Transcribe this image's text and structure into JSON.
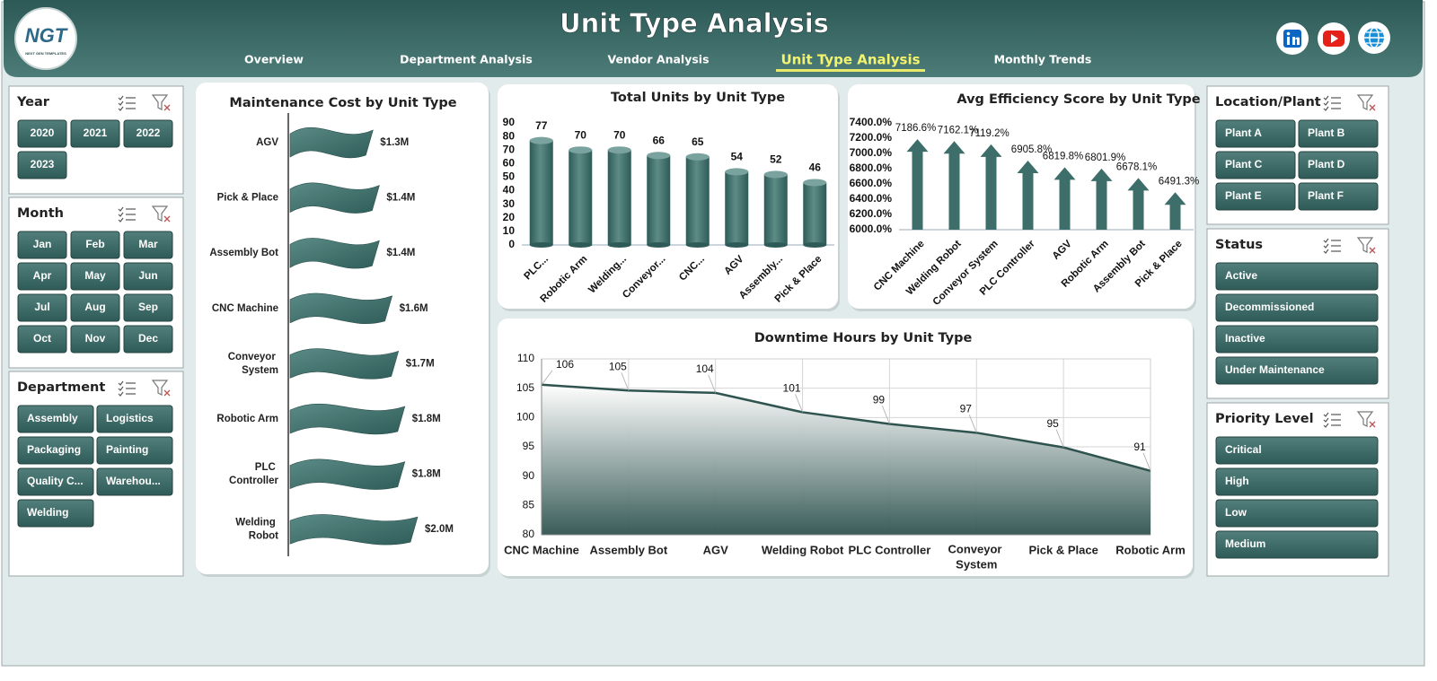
{
  "header": {
    "logo": "NGT",
    "logo_tagline": "NEXT GEN TEMPLATES",
    "title": "Unit Type Analysis"
  },
  "nav": {
    "tabs": [
      "Overview",
      "Department Analysis",
      "Vendor Analysis",
      "Unit Type Analysis",
      "Monthly Trends"
    ],
    "active": 3
  },
  "slicers": [
    {
      "title": "Year",
      "items": [
        "2020",
        "2021",
        "2022",
        "2023"
      ]
    },
    {
      "title": "Month",
      "items": [
        "Jan",
        "Feb",
        "Mar",
        "Apr",
        "May",
        "Jun",
        "Jul",
        "Aug",
        "Sep",
        "Oct",
        "Nov",
        "Dec"
      ]
    },
    {
      "title": "Department",
      "items": [
        "Assembly",
        "Logistics",
        "Packaging",
        "Painting",
        "Quality C...",
        "Warehou...",
        "Welding"
      ]
    },
    {
      "title": "Location/Plant",
      "items": [
        "Plant A",
        "Plant B",
        "Plant C",
        "Plant D",
        "Plant E",
        "Plant F"
      ]
    },
    {
      "title": "Status",
      "items": [
        "Active",
        "Decommissioned",
        "Inactive",
        "Under Maintenance"
      ]
    },
    {
      "title": "Priority Level",
      "items": [
        "Critical",
        "High",
        "Low",
        "Medium"
      ]
    }
  ],
  "chart_data": [
    {
      "type": "bar",
      "orientation": "horizontal",
      "mark_shape": "flag",
      "title": "Maintenance Cost by Unit Type",
      "categories": [
        "AGV",
        "Pick & Place",
        "Assembly Bot",
        "CNC Machine",
        "Conveyor System",
        "Robotic Arm",
        "PLC Controller",
        "Welding Robot"
      ],
      "values": [
        1.3,
        1.4,
        1.4,
        1.6,
        1.7,
        1.8,
        1.8,
        2.0
      ],
      "value_labels": [
        "$1.3M",
        "$1.4M",
        "$1.4M",
        "$1.6M",
        "$1.7M",
        "$1.8M",
        "$1.8M",
        "$2.0M"
      ],
      "color": "#3d6e6a"
    },
    {
      "type": "bar",
      "orientation": "vertical",
      "mark_shape": "cylinder",
      "title": "Total Units by Unit Type",
      "categories": [
        "PLC...",
        "Robotic Arm",
        "Welding...",
        "Conveyor...",
        "CNC...",
        "AGV",
        "Assembly...",
        "Pick & Place"
      ],
      "values": [
        77,
        70,
        70,
        66,
        65,
        54,
        52,
        46
      ],
      "color": "#3d6e6a",
      "ylim": [
        0,
        90
      ],
      "yticks": [
        0,
        10,
        20,
        30,
        40,
        50,
        60,
        70,
        80,
        90
      ],
      "grid": false
    },
    {
      "type": "bar",
      "orientation": "vertical",
      "mark_shape": "arrow",
      "title": "Avg Efficiency Score by Unit Type",
      "categories": [
        "CNC Machine",
        "Welding Robot",
        "Conveyor System",
        "PLC Controller",
        "AGV",
        "Robotic Arm",
        "Assembly Bot",
        "Pick & Place"
      ],
      "values": [
        7186.6,
        7162.1,
        7119.2,
        6905.8,
        6819.8,
        6801.9,
        6678.1,
        6491.3
      ],
      "value_labels": [
        "7186.6%",
        "7162.1%",
        "7119.2%",
        "6905.8%",
        "6819.8%",
        "6801.9%",
        "6678.1%",
        "6491.3%"
      ],
      "color": "#3d6e6a",
      "ylim": [
        6000,
        7400
      ],
      "yticks": [
        {
          "value": 6000,
          "label": "6000.0%"
        },
        {
          "value": 6200,
          "label": "6200.0%"
        },
        {
          "value": 6400,
          "label": "6400.0%"
        },
        {
          "value": 6600,
          "label": "6600.0%"
        },
        {
          "value": 6800,
          "label": "6800.0%"
        },
        {
          "value": 7000,
          "label": "7000.0%"
        },
        {
          "value": 7200,
          "label": "7200.0%"
        },
        {
          "value": 7400,
          "label": "7400.0%"
        }
      ],
      "grid": false
    },
    {
      "type": "area",
      "title": "Downtime Hours by Unit Type",
      "categories": [
        "CNC Machine",
        "Assembly Bot",
        "AGV",
        "Welding Robot",
        "PLC Controller",
        "Conveyor System",
        "Pick & Place",
        "Robotic Arm"
      ],
      "values": [
        105.6,
        104.6,
        104.2,
        100.9,
        98.9,
        97.4,
        94.9,
        90.9
      ],
      "value_labels": [
        "106",
        "105",
        "104",
        "101",
        "99",
        "97",
        "95",
        "91"
      ],
      "color": "#2f5450",
      "ylim": [
        80,
        110
      ],
      "yticks": [
        80,
        85,
        90,
        95,
        100,
        105,
        110
      ],
      "grid": true
    }
  ]
}
